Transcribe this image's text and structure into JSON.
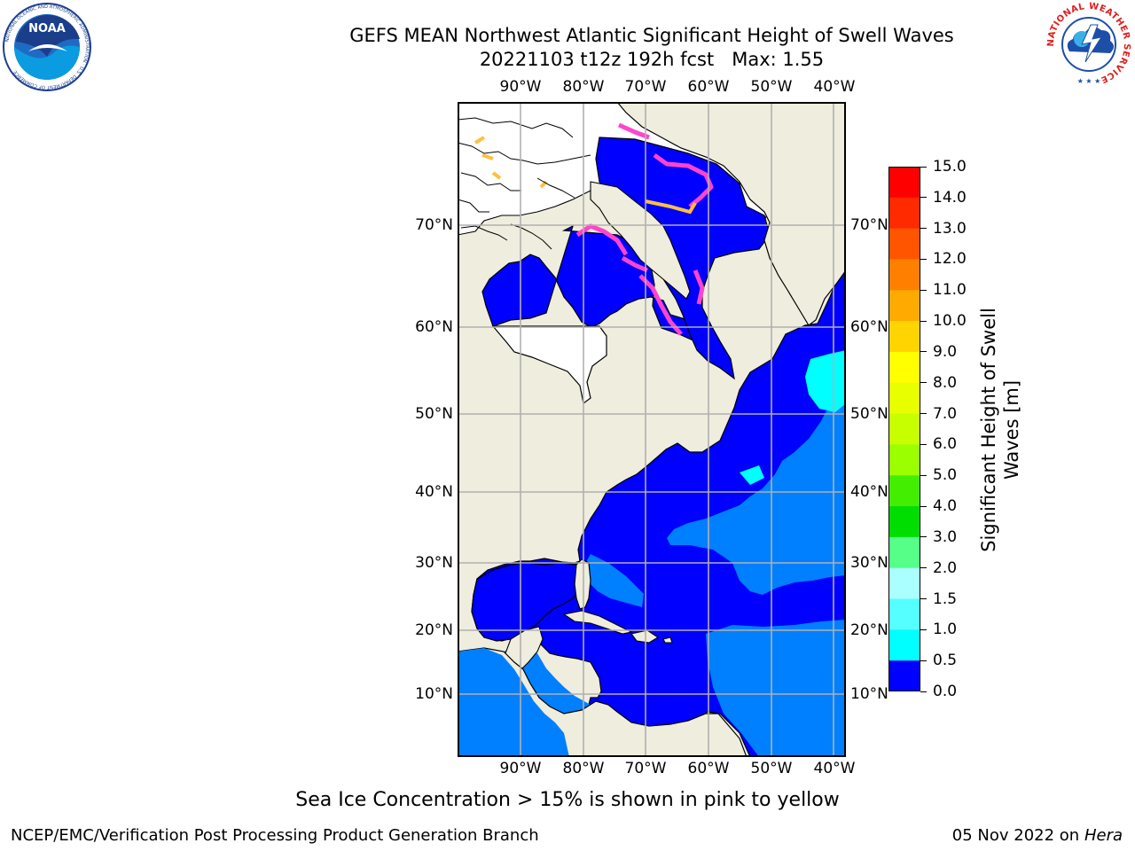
{
  "header": {
    "title_line1": "GEFS MEAN Northwest Atlantic Significant Height of Swell Waves",
    "title_line2": "20221103 t12z 192h fcst   Max: 1.55"
  },
  "logos": {
    "noaa_text": "NOAA",
    "noaa_ring_text": "NATIONAL OCEANIC AND ATMOSPHERIC ADMINISTRATION · U.S. DEPARTMENT OF COMMERCE",
    "nws_ring_text": "NATIONAL WEATHER SERVICE"
  },
  "map": {
    "lon_labels": [
      "90°W",
      "80°W",
      "70°W",
      "60°W",
      "50°W",
      "40°W"
    ],
    "lat_labels": [
      "70°N",
      "60°N",
      "50°N",
      "40°N",
      "30°N",
      "20°N",
      "10°N"
    ],
    "colors": {
      "land": "#efeddd",
      "ocean_low": "#0000ff",
      "ocean_mid": "#0080ff",
      "ice": "#ff44cc",
      "gridline": "#b0b0b0"
    }
  },
  "colorbar": {
    "label": "Significant Height of Swell Waves [m]",
    "label_line1": "Significant Height of Swell",
    "label_line2": "Waves [m]",
    "ticks": [
      "15.0",
      "14.0",
      "13.0",
      "12.0",
      "11.0",
      "10.0",
      "9.0",
      "8.0",
      "7.0",
      "6.0",
      "5.0",
      "4.0",
      "3.0",
      "2.0",
      "1.5",
      "1.0",
      "0.5",
      "0.0"
    ],
    "colors": [
      "#ff0000",
      "#ff2a00",
      "#ff5500",
      "#ff8000",
      "#ffaa00",
      "#ffd400",
      "#ffff00",
      "#e8ff00",
      "#c8ff00",
      "#9bff00",
      "#44ee00",
      "#00dd00",
      "#55ff88",
      "#aaffff",
      "#55ffff",
      "#00ffff",
      "#0080ff",
      "#0000ff"
    ]
  },
  "caption": "Sea Ice Concentration > 15% is shown in pink to yellow",
  "footer": {
    "left": "NCEP/EMC/Verification Post Processing Product Generation Branch",
    "right_date": "05 Nov 2022 on",
    "right_machine": "Hera"
  }
}
